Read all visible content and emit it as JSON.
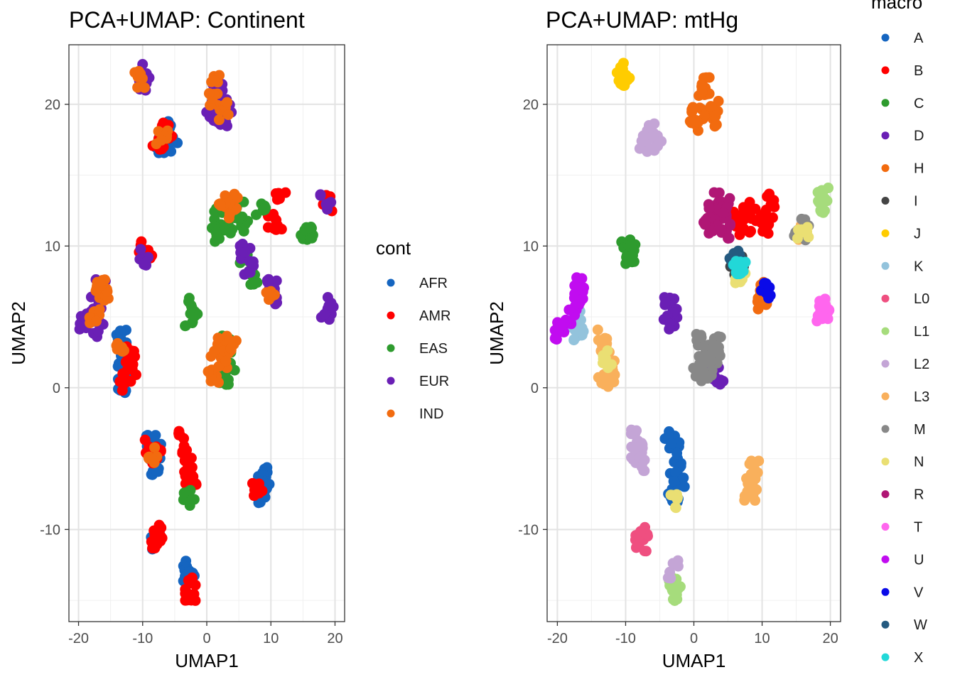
{
  "chart_data": [
    {
      "type": "scatter",
      "title": "PCA+UMAP: Continent",
      "xlabel": "UMAP1",
      "ylabel": "UMAP2",
      "xlim": [
        -21.5,
        21.5
      ],
      "ylim": [
        -16.5,
        24.2
      ],
      "xticks": [
        -20,
        -10,
        0,
        10,
        20
      ],
      "xtick_labels": [
        "-20",
        "-10",
        "0",
        "10",
        "20"
      ],
      "yticks": [
        -10,
        0,
        10,
        20
      ],
      "ytick_labels": [
        "-10",
        "0",
        "10",
        "20"
      ],
      "grid": true,
      "legend_title": "cont",
      "legend_position": "right",
      "series": [
        {
          "name": "AFR",
          "color": "#1565c0",
          "points": [
            [
              -13.3,
              3.6
            ],
            [
              -13.0,
              2.0
            ],
            [
              -12.5,
              1.0
            ],
            [
              -13.3,
              0.2
            ],
            [
              -8.8,
              -3.6
            ],
            [
              -8.0,
              -4.5
            ],
            [
              -7.8,
              -5.5
            ],
            [
              -7.8,
              -10.8
            ],
            [
              -3.0,
              -12.8
            ],
            [
              -2.8,
              -13.2
            ],
            [
              8.8,
              -5.8
            ],
            [
              9.0,
              -6.8
            ],
            [
              8.5,
              -7.5
            ],
            [
              -6.5,
              18.3
            ],
            [
              -5.2,
              17.3
            ],
            [
              -7.2,
              17.2
            ],
            [
              -13.0,
              3.0
            ]
          ]
        },
        {
          "name": "AMR",
          "color": "#ff0000",
          "points": [
            [
              -9.8,
              9.8
            ],
            [
              -9.3,
              9.4
            ],
            [
              -12.3,
              2.3
            ],
            [
              -11.5,
              1.0
            ],
            [
              -13.0,
              0.4
            ],
            [
              -8.8,
              -4.0
            ],
            [
              -8.0,
              -4.8
            ],
            [
              -3.5,
              -3.6
            ],
            [
              -3.0,
              -4.8
            ],
            [
              -2.7,
              -6.0
            ],
            [
              -2.5,
              -6.9
            ],
            [
              -7.8,
              -10.3
            ],
            [
              -7.8,
              -11.0
            ],
            [
              -2.8,
              -14.0
            ],
            [
              -2.6,
              -14.4
            ],
            [
              -7.6,
              17.0
            ],
            [
              -6.2,
              18.2
            ],
            [
              10.0,
              11.8
            ],
            [
              10.8,
              11.5
            ],
            [
              11.5,
              13.2
            ],
            [
              19.0,
              13.0
            ],
            [
              8.0,
              -7.3
            ],
            [
              -12.0,
              2.8
            ]
          ]
        },
        {
          "name": "EAS",
          "color": "#2e9b2e",
          "points": [
            [
              2.0,
              12.0
            ],
            [
              3.5,
              11.5
            ],
            [
              6.0,
              11.5
            ],
            [
              5.0,
              12.5
            ],
            [
              1.5,
              10.8
            ],
            [
              15.5,
              11.0
            ],
            [
              16.0,
              10.8
            ],
            [
              8.5,
              12.5
            ],
            [
              7.0,
              7.8
            ],
            [
              3.0,
              2.0
            ],
            [
              2.5,
              1.0
            ],
            [
              3.5,
              0.8
            ],
            [
              -2.5,
              4.8
            ],
            [
              -2.2,
              5.8
            ],
            [
              -2.8,
              -7.8
            ],
            [
              6.0,
              9.3
            ],
            [
              3.0,
              3.5
            ]
          ]
        },
        {
          "name": "EUR",
          "color": "#6a1fb5",
          "points": [
            [
              -10.2,
              22.2
            ],
            [
              -9.8,
              21.6
            ],
            [
              0.5,
              19.5
            ],
            [
              1.5,
              20.5
            ],
            [
              2.5,
              19.0
            ],
            [
              1.8,
              21.3
            ],
            [
              -16.5,
              7.0
            ],
            [
              -17.3,
              6.0
            ],
            [
              -18.0,
              5.0
            ],
            [
              -19.5,
              4.5
            ],
            [
              -17.0,
              4.2
            ],
            [
              6.0,
              9.5
            ],
            [
              6.5,
              8.5
            ],
            [
              10.3,
              7.0
            ],
            [
              10.5,
              6.5
            ],
            [
              19.0,
              5.8
            ],
            [
              18.7,
              5.3
            ],
            [
              18.5,
              13.2
            ],
            [
              -9.8,
              9.2
            ],
            [
              3.0,
              19.8
            ]
          ]
        },
        {
          "name": "IND",
          "color": "#f26b0f",
          "points": [
            [
              3.5,
              13.2
            ],
            [
              4.5,
              12.8
            ],
            [
              2.8,
              12.5
            ],
            [
              1.5,
              2.5
            ],
            [
              2.5,
              2.0
            ],
            [
              3.5,
              2.5
            ],
            [
              1.0,
              1.0
            ],
            [
              2.0,
              3.2
            ],
            [
              4.0,
              3.0
            ],
            [
              1.5,
              21.5
            ],
            [
              1.2,
              20.5
            ],
            [
              -16.0,
              6.5
            ],
            [
              -16.8,
              6.8
            ],
            [
              -16.3,
              7.3
            ],
            [
              -17.5,
              5.0
            ],
            [
              10.0,
              6.2
            ],
            [
              -13.2,
              3.2
            ],
            [
              -8.3,
              -4.8
            ],
            [
              -10.5,
              21.8
            ],
            [
              2.5,
              19.5
            ],
            [
              -7.0,
              17.5
            ]
          ]
        }
      ]
    },
    {
      "type": "scatter",
      "title": "PCA+UMAP: mtHg",
      "xlabel": "UMAP1",
      "ylabel": "UMAP2",
      "xlim": [
        -21.5,
        21.5
      ],
      "ylim": [
        -16.5,
        24.2
      ],
      "xticks": [
        -20,
        -10,
        0,
        10,
        20
      ],
      "xtick_labels": [
        "-20",
        "-10",
        "0",
        "10",
        "20"
      ],
      "yticks": [
        -10,
        0,
        10,
        20
      ],
      "ytick_labels": [
        "-10",
        "0",
        "10",
        "20"
      ],
      "grid": true,
      "legend_title": "macro",
      "legend_position": "right",
      "series": [
        {
          "name": "A",
          "color": "#1565c0",
          "points": [
            [
              -3.5,
              -3.6
            ],
            [
              -2.8,
              -4.5
            ],
            [
              -2.5,
              -5.5
            ],
            [
              -2.8,
              -6.5
            ],
            [
              -3.0,
              -7.5
            ],
            [
              -2.2,
              -6.8
            ]
          ]
        },
        {
          "name": "B",
          "color": "#ff0000",
          "points": [
            [
              10.0,
              11.8
            ],
            [
              10.8,
              11.5
            ],
            [
              11.5,
              13.2
            ],
            [
              9.8,
              12.2
            ],
            [
              7.5,
              11.0
            ],
            [
              8.0,
              12.5
            ],
            [
              6.0,
              11.8
            ]
          ]
        },
        {
          "name": "C",
          "color": "#2e9b2e",
          "points": [
            [
              -9.8,
              9.8
            ],
            [
              -9.5,
              9.3
            ],
            [
              -9.2,
              9.6
            ]
          ]
        },
        {
          "name": "D",
          "color": "#6a1fb5",
          "points": [
            [
              -3.5,
              5.8
            ],
            [
              -3.0,
              5.0
            ],
            [
              -3.8,
              4.7
            ],
            [
              3.5,
              0.6
            ],
            [
              3.0,
              1.2
            ]
          ]
        },
        {
          "name": "H",
          "color": "#f26b0f",
          "points": [
            [
              0.5,
              19.5
            ],
            [
              1.5,
              20.5
            ],
            [
              2.5,
              19.0
            ],
            [
              1.8,
              21.3
            ],
            [
              3.0,
              19.8
            ],
            [
              0.0,
              18.5
            ],
            [
              10.0,
              6.2
            ],
            [
              10.5,
              6.8
            ]
          ]
        },
        {
          "name": "I",
          "color": "#444444",
          "points": [
            [
              6.5,
              8.8
            ],
            [
              6.2,
              8.5
            ]
          ]
        },
        {
          "name": "J",
          "color": "#ffcc00",
          "points": [
            [
              -10.5,
              22.0
            ],
            [
              -10.2,
              22.4
            ],
            [
              -9.8,
              21.8
            ]
          ]
        },
        {
          "name": "K",
          "color": "#93c3dc",
          "points": [
            [
              -17.5,
              4.8
            ],
            [
              -17.0,
              4.2
            ],
            [
              -17.5,
              4.0
            ]
          ]
        },
        {
          "name": "L0",
          "color": "#ef4f80",
          "points": [
            [
              -7.8,
              -10.3
            ],
            [
              -7.8,
              -10.9
            ],
            [
              -7.5,
              -10.6
            ]
          ]
        },
        {
          "name": "L1",
          "color": "#a6dc7c",
          "points": [
            [
              19.0,
              13.5
            ],
            [
              18.8,
              13.0
            ],
            [
              -2.8,
              -14.0
            ],
            [
              -2.5,
              -14.3
            ],
            [
              -3.0,
              -14.5
            ]
          ]
        },
        {
          "name": "L2",
          "color": "#c4a5d6",
          "points": [
            [
              -6.5,
              18.2
            ],
            [
              -5.5,
              17.3
            ],
            [
              -7.2,
              17.2
            ],
            [
              -8.8,
              -3.6
            ],
            [
              -8.0,
              -4.3
            ],
            [
              -8.5,
              -5.0
            ],
            [
              -7.8,
              -5.4
            ],
            [
              -3.0,
              -12.8
            ]
          ]
        },
        {
          "name": "L3",
          "color": "#f9b05c",
          "points": [
            [
              -13.5,
              3.5
            ],
            [
              -12.8,
              2.5
            ],
            [
              -12.0,
              1.5
            ],
            [
              -13.2,
              0.3
            ],
            [
              -12.5,
              1.0
            ],
            [
              8.8,
              -5.8
            ],
            [
              8.5,
              -6.8
            ],
            [
              8.2,
              -7.5
            ],
            [
              15.8,
              11.0
            ]
          ]
        },
        {
          "name": "M",
          "color": "#888888",
          "points": [
            [
              0.5,
              0.8
            ],
            [
              1.5,
              1.5
            ],
            [
              2.5,
              2.5
            ],
            [
              1.0,
              3.5
            ],
            [
              3.0,
              2.0
            ],
            [
              2.0,
              1.0
            ],
            [
              1.5,
              2.5
            ],
            [
              3.5,
              3.0
            ],
            [
              15.5,
              11.3
            ],
            [
              16.0,
              10.9
            ]
          ]
        },
        {
          "name": "N",
          "color": "#eadf73",
          "points": [
            [
              7.0,
              7.7
            ],
            [
              6.8,
              8.0
            ],
            [
              -12.8,
              2.0
            ],
            [
              -3.0,
              -8.0
            ],
            [
              16.0,
              11.0
            ]
          ]
        },
        {
          "name": "R",
          "color": "#b01675",
          "points": [
            [
              3.0,
              12.5
            ],
            [
              4.0,
              12.0
            ],
            [
              2.5,
              11.5
            ],
            [
              3.5,
              13.2
            ],
            [
              4.5,
              12.8
            ],
            [
              2.0,
              12.0
            ],
            [
              4.8,
              11.0
            ]
          ]
        },
        {
          "name": "T",
          "color": "#ff66ee",
          "points": [
            [
              19.0,
              5.8
            ],
            [
              18.8,
              5.3
            ],
            [
              19.2,
              5.5
            ]
          ]
        },
        {
          "name": "U",
          "color": "#c10cf0",
          "points": [
            [
              -16.5,
              7.2
            ],
            [
              -17.3,
              6.0
            ],
            [
              -18.0,
              5.0
            ],
            [
              -19.5,
              4.5
            ],
            [
              -16.8,
              6.8
            ],
            [
              -19.8,
              4.0
            ]
          ]
        },
        {
          "name": "V",
          "color": "#0a0ae8",
          "points": [
            [
              10.5,
              6.8
            ]
          ]
        },
        {
          "name": "W",
          "color": "#245a80",
          "points": [
            [
              6.0,
              9.3
            ],
            [
              6.2,
              9.0
            ]
          ]
        },
        {
          "name": "X",
          "color": "#22d8d8",
          "points": [
            [
              6.8,
              8.6
            ],
            [
              6.6,
              8.4
            ]
          ]
        }
      ]
    }
  ]
}
